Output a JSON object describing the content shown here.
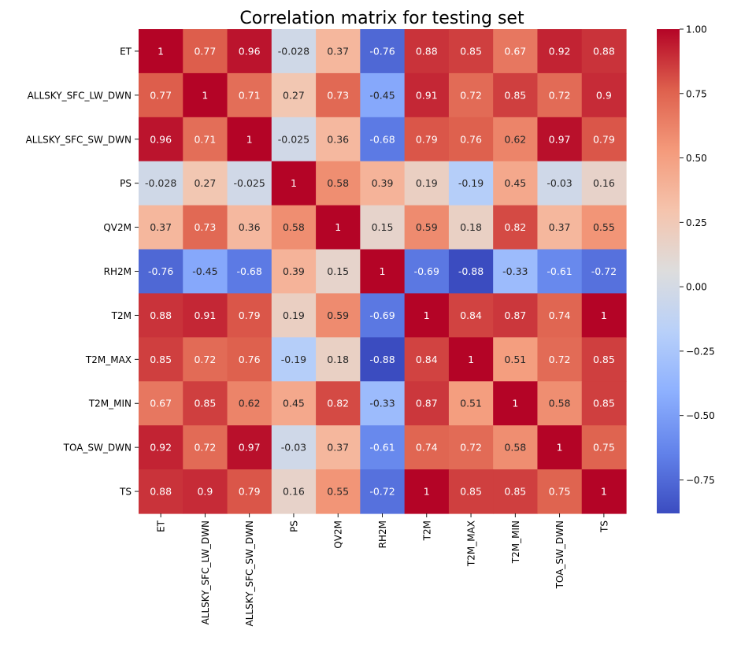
{
  "chart_data": {
    "type": "heatmap",
    "title": "Correlation matrix for testing set",
    "xlabel": "",
    "ylabel": "",
    "colormap": "coolwarm",
    "value_range": [
      -0.88,
      1.0
    ],
    "annotations_shown": true,
    "rows": [
      "ET",
      "ALLSKY_SFC_LW_DWN",
      "ALLSKY_SFC_SW_DWN",
      "PS",
      "QV2M",
      "RH2M",
      "T2M",
      "T2M_MAX",
      "T2M_MIN",
      "TOA_SW_DWN",
      "TS"
    ],
    "columns": [
      "ET",
      "ALLSKY_SFC_LW_DWN",
      "ALLSKY_SFC_SW_DWN",
      "PS",
      "QV2M",
      "RH2M",
      "T2M",
      "T2M_MAX",
      "T2M_MIN",
      "TOA_SW_DWN",
      "TS"
    ],
    "values": [
      [
        1,
        0.77,
        0.96,
        -0.028,
        0.37,
        -0.76,
        0.88,
        0.85,
        0.67,
        0.92,
        0.88
      ],
      [
        0.77,
        1,
        0.71,
        0.27,
        0.73,
        -0.45,
        0.91,
        0.72,
        0.85,
        0.72,
        0.9
      ],
      [
        0.96,
        0.71,
        1,
        -0.025,
        0.36,
        -0.68,
        0.79,
        0.76,
        0.62,
        0.97,
        0.79
      ],
      [
        -0.028,
        0.27,
        -0.025,
        1,
        0.58,
        0.39,
        0.19,
        -0.19,
        0.45,
        -0.03,
        0.16
      ],
      [
        0.37,
        0.73,
        0.36,
        0.58,
        1,
        0.15,
        0.59,
        0.18,
        0.82,
        0.37,
        0.55
      ],
      [
        -0.76,
        -0.45,
        -0.68,
        0.39,
        0.15,
        1,
        -0.69,
        -0.88,
        -0.33,
        -0.61,
        -0.72
      ],
      [
        0.88,
        0.91,
        0.79,
        0.19,
        0.59,
        -0.69,
        1,
        0.84,
        0.87,
        0.74,
        1
      ],
      [
        0.85,
        0.72,
        0.76,
        -0.19,
        0.18,
        -0.88,
        0.84,
        1,
        0.51,
        0.72,
        0.85
      ],
      [
        0.67,
        0.85,
        0.62,
        0.45,
        0.82,
        -0.33,
        0.87,
        0.51,
        1,
        0.58,
        0.85
      ],
      [
        0.92,
        0.72,
        0.97,
        -0.03,
        0.37,
        -0.61,
        0.74,
        0.72,
        0.58,
        1,
        0.75
      ],
      [
        0.88,
        0.9,
        0.79,
        0.16,
        0.55,
        -0.72,
        1,
        0.85,
        0.85,
        0.75,
        1
      ]
    ],
    "colorbar": {
      "ticks": [
        1.0,
        0.75,
        0.5,
        0.25,
        0.0,
        -0.25,
        -0.5,
        -0.75
      ],
      "tick_labels": [
        "1.00",
        "0.75",
        "0.50",
        "0.25",
        "0.00",
        "−0.25",
        "−0.50",
        "−0.75"
      ]
    }
  }
}
